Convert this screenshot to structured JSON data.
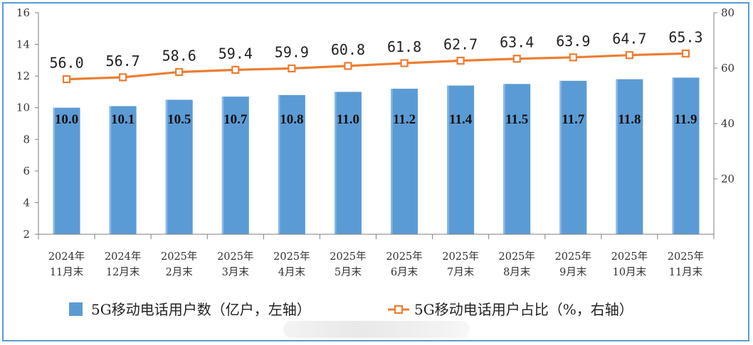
{
  "chart_data": {
    "type": "bar+line",
    "categories": [
      [
        "2024年",
        "11月末"
      ],
      [
        "2024年",
        "12月末"
      ],
      [
        "2025年",
        "2月末"
      ],
      [
        "2025年",
        "3月末"
      ],
      [
        "2025年",
        "4月末"
      ],
      [
        "2025年",
        "5月末"
      ],
      [
        "2025年",
        "6月末"
      ],
      [
        "2025年",
        "7月末"
      ],
      [
        "2025年",
        "8月末"
      ],
      [
        "2025年",
        "9月末"
      ],
      [
        "2025年",
        "10月末"
      ],
      [
        "2025年",
        "11月末"
      ]
    ],
    "series": [
      {
        "name": "5G移动电话用户数（亿户，左轴）",
        "type": "bar",
        "axis": "left",
        "color": "#5b9bd5",
        "values": [
          10.0,
          10.1,
          10.5,
          10.7,
          10.8,
          11.0,
          11.2,
          11.4,
          11.5,
          11.7,
          11.8,
          11.9
        ],
        "labels": [
          "10.0",
          "10.1",
          "10.5",
          "10.7",
          "10.8",
          "11.0",
          "11.2",
          "11.4",
          "11.5",
          "11.7",
          "11.8",
          "11.9"
        ]
      },
      {
        "name": "5G移动电话用户占比（%，右轴）",
        "type": "line",
        "axis": "right",
        "color": "#ed7d31",
        "values": [
          56.0,
          56.7,
          58.6,
          59.4,
          59.9,
          60.8,
          61.8,
          62.7,
          63.4,
          63.9,
          64.7,
          65.3
        ],
        "labels": [
          "56.0",
          "56.7",
          "58.6",
          "59.4",
          "59.9",
          "60.8",
          "61.8",
          "62.7",
          "63.4",
          "63.9",
          "64.7",
          "65.3"
        ]
      }
    ],
    "y_left": {
      "min": 2,
      "max": 16,
      "ticks": [
        "2",
        "4",
        "6",
        "8",
        "10",
        "12",
        "14",
        "16"
      ]
    },
    "y_right": {
      "min": 0,
      "max": 80,
      "ticks": [
        "20",
        "40",
        "60",
        "80"
      ]
    },
    "legend": {
      "position": "bottom"
    }
  }
}
